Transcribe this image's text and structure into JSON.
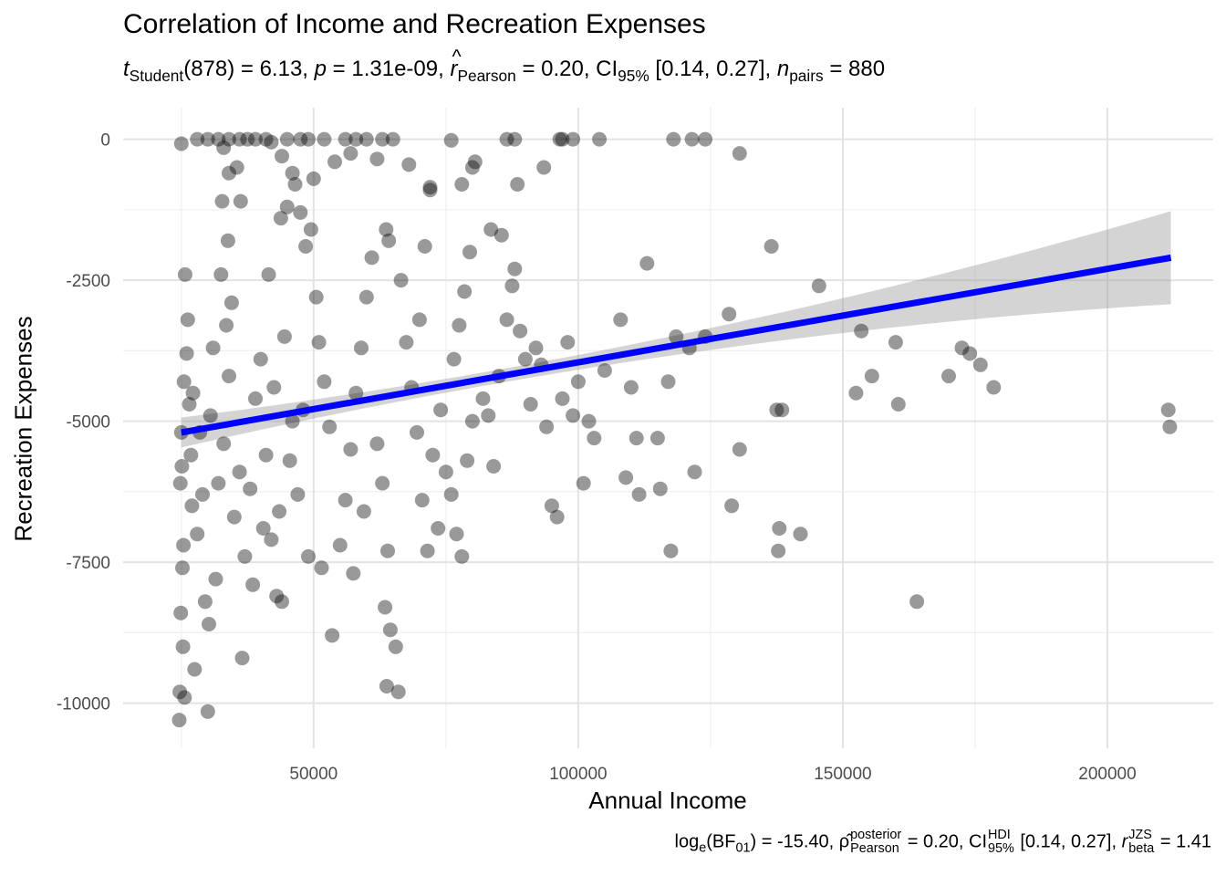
{
  "title": "Correlation of Income and Recreation Expenses",
  "subtitle": {
    "t_sym": "t",
    "t_sub": "Student",
    "t_val": "(878) = 6.13,",
    "p_sym": "p",
    "p_val": "= 1.31e-09,",
    "r_sym": "r",
    "r_sub": "Pearson",
    "r_val": "= 0.20, CI",
    "ci_sub": "95%",
    "ci_val": "[0.14, 0.27],",
    "n_sym": "n",
    "n_sub": "pairs",
    "n_val": "= 880"
  },
  "caption": {
    "log": "log",
    "log_sub": "e",
    "bf_open": "(BF",
    "bf_sub": "01",
    "bf_val": ") = -15.40,",
    "rho_sym": "ρ̂",
    "rho_sup": "posterior",
    "rho_sub": "Pearson",
    "rho_val": "= 0.20, CI",
    "ci_sup": "HDI",
    "ci_sub": "95%",
    "ci_val": "[0.14, 0.27],",
    "rj_sym": "r",
    "rj_sup": "JZS",
    "rj_sub": "beta",
    "rj_val": "= 1.41"
  },
  "chart_data": {
    "type": "scatter",
    "title": "Correlation of Income and Recreation Expenses",
    "xlabel": "Annual Income",
    "ylabel": "Recreation Expenses",
    "xlim": [
      14000,
      220000
    ],
    "ylim": [
      -10800,
      560
    ],
    "xticks": [
      50000,
      100000,
      150000,
      200000
    ],
    "yticks": [
      0,
      -2500,
      -5000,
      -7500,
      -10000
    ],
    "n_points": 880,
    "point_color": "#000000",
    "point_alpha": 0.4,
    "line_color": "#0000ff",
    "band_color": "#999999",
    "fit": {
      "x_start": 25000,
      "x_end": 212000,
      "y_start": -5200,
      "y_end": -2100,
      "ci_lower_end": -2950,
      "ci_upper_end": -1300,
      "ci_halfwidth_center": 120
    },
    "points": [
      [
        25000,
        -5200
      ],
      [
        25500,
        -4300
      ],
      [
        24800,
        -6100
      ],
      [
        25200,
        -7600
      ],
      [
        26000,
        -3800
      ],
      [
        24900,
        -8400
      ],
      [
        25300,
        -9000
      ],
      [
        25100,
        -5800
      ],
      [
        26500,
        -4700
      ],
      [
        27000,
        -6500
      ],
      [
        25700,
        -2400
      ],
      [
        26200,
        -3200
      ],
      [
        25400,
        -7200
      ],
      [
        24700,
        -9800
      ],
      [
        25600,
        -9900
      ],
      [
        27500,
        -9400
      ],
      [
        30000,
        -10150
      ],
      [
        24600,
        -10300
      ],
      [
        26800,
        -5600
      ],
      [
        27200,
        -4500
      ],
      [
        28000,
        -7000
      ],
      [
        28500,
        -5200
      ],
      [
        29000,
        -6300
      ],
      [
        30500,
        -4900
      ],
      [
        31000,
        -3700
      ],
      [
        32000,
        -6100
      ],
      [
        29500,
        -8200
      ],
      [
        31500,
        -7800
      ],
      [
        30200,
        -8600
      ],
      [
        33000,
        -5400
      ],
      [
        34000,
        -4200
      ],
      [
        33500,
        -3300
      ],
      [
        35000,
        -6700
      ],
      [
        36000,
        -5900
      ],
      [
        34500,
        -2900
      ],
      [
        32500,
        -2400
      ],
      [
        33800,
        -1800
      ],
      [
        32700,
        -1100
      ],
      [
        36200,
        -1100
      ],
      [
        35500,
        -500
      ],
      [
        34000,
        -600
      ],
      [
        36500,
        -9200
      ],
      [
        37000,
        -7400
      ],
      [
        38000,
        -6200
      ],
      [
        39000,
        -4600
      ],
      [
        40000,
        -3900
      ],
      [
        41000,
        -5600
      ],
      [
        42000,
        -7100
      ],
      [
        43000,
        -8100
      ],
      [
        44000,
        -8200
      ],
      [
        38500,
        -7900
      ],
      [
        40500,
        -6900
      ],
      [
        42500,
        -4400
      ],
      [
        44500,
        -3500
      ],
      [
        46000,
        -5000
      ],
      [
        47000,
        -6300
      ],
      [
        48000,
        -4800
      ],
      [
        45500,
        -5700
      ],
      [
        43500,
        -6600
      ],
      [
        41500,
        -2400
      ],
      [
        43800,
        -1400
      ],
      [
        45000,
        -1200
      ],
      [
        46500,
        -800
      ],
      [
        47500,
        -1300
      ],
      [
        48500,
        -1900
      ],
      [
        49500,
        -1600
      ],
      [
        50500,
        -2800
      ],
      [
        51000,
        -3600
      ],
      [
        52000,
        -4300
      ],
      [
        53000,
        -5100
      ],
      [
        49000,
        -7400
      ],
      [
        51500,
        -7600
      ],
      [
        53500,
        -8800
      ],
      [
        55000,
        -7200
      ],
      [
        56000,
        -6400
      ],
      [
        57000,
        -5500
      ],
      [
        58000,
        -4500
      ],
      [
        59000,
        -3700
      ],
      [
        60000,
        -2800
      ],
      [
        61000,
        -2100
      ],
      [
        57500,
        -7700
      ],
      [
        59500,
        -6600
      ],
      [
        62000,
        -5400
      ],
      [
        63000,
        -6100
      ],
      [
        64000,
        -7300
      ],
      [
        63500,
        -8300
      ],
      [
        64500,
        -8700
      ],
      [
        63800,
        -9700
      ],
      [
        66000,
        -9800
      ],
      [
        65500,
        -9000
      ],
      [
        64200,
        -1800
      ],
      [
        63700,
        -1600
      ],
      [
        66500,
        -2500
      ],
      [
        67500,
        -3600
      ],
      [
        68500,
        -4400
      ],
      [
        69500,
        -5200
      ],
      [
        70500,
        -6400
      ],
      [
        71500,
        -7300
      ],
      [
        72500,
        -5600
      ],
      [
        73500,
        -6900
      ],
      [
        70000,
        -3200
      ],
      [
        71000,
        -1900
      ],
      [
        72000,
        -900
      ],
      [
        74000,
        -4800
      ],
      [
        75000,
        -5900
      ],
      [
        76000,
        -6300
      ],
      [
        77000,
        -7000
      ],
      [
        78000,
        -7400
      ],
      [
        79000,
        -5700
      ],
      [
        80000,
        -5000
      ],
      [
        76500,
        -3900
      ],
      [
        77500,
        -3300
      ],
      [
        78500,
        -2700
      ],
      [
        79500,
        -2000
      ],
      [
        80500,
        -400
      ],
      [
        78000,
        -800
      ],
      [
        82000,
        -4600
      ],
      [
        83000,
        -4900
      ],
      [
        84000,
        -5800
      ],
      [
        85000,
        -4200
      ],
      [
        83500,
        -1600
      ],
      [
        85500,
        -1700
      ],
      [
        86500,
        -3200
      ],
      [
        87500,
        -2600
      ],
      [
        88000,
        -2300
      ],
      [
        88500,
        -800
      ],
      [
        89000,
        -3400
      ],
      [
        90000,
        -3900
      ],
      [
        91000,
        -4700
      ],
      [
        92000,
        -3700
      ],
      [
        93000,
        -4000
      ],
      [
        94000,
        -5100
      ],
      [
        95000,
        -6500
      ],
      [
        96000,
        -6700
      ],
      [
        97000,
        -4600
      ],
      [
        98000,
        -3600
      ],
      [
        99000,
        -4900
      ],
      [
        100000,
        -4300
      ],
      [
        101000,
        -6100
      ],
      [
        102000,
        -5000
      ],
      [
        103000,
        -5300
      ],
      [
        105000,
        -4100
      ],
      [
        108000,
        -3200
      ],
      [
        109000,
        -6000
      ],
      [
        110000,
        -4400
      ],
      [
        111000,
        -5300
      ],
      [
        111500,
        -6300
      ],
      [
        113000,
        -2200
      ],
      [
        115000,
        -5300
      ],
      [
        115500,
        -6200
      ],
      [
        117000,
        -4300
      ],
      [
        117500,
        -7300
      ],
      [
        118500,
        -3500
      ],
      [
        121000,
        -3700
      ],
      [
        122000,
        -5900
      ],
      [
        124000,
        -3500
      ],
      [
        128500,
        -3100
      ],
      [
        129000,
        -6500
      ],
      [
        130500,
        -5500
      ],
      [
        136500,
        -1900
      ],
      [
        137500,
        -4800
      ],
      [
        137800,
        -7300
      ],
      [
        138000,
        -6900
      ],
      [
        138500,
        -4800
      ],
      [
        142000,
        -7000
      ],
      [
        145500,
        -2600
      ],
      [
        152500,
        -4500
      ],
      [
        153500,
        -3400
      ],
      [
        155500,
        -4200
      ],
      [
        160000,
        -3600
      ],
      [
        160500,
        -4700
      ],
      [
        164000,
        -8200
      ],
      [
        170000,
        -4200
      ],
      [
        172500,
        -3700
      ],
      [
        174000,
        -3800
      ],
      [
        176000,
        -4000
      ],
      [
        178500,
        -4400
      ],
      [
        211500,
        -4800
      ],
      [
        211800,
        -5100
      ],
      [
        130500,
        -250
      ],
      [
        93500,
        -500
      ],
      [
        88000,
        0
      ],
      [
        86500,
        0
      ],
      [
        97000,
        0
      ],
      [
        99000,
        0
      ],
      [
        104000,
        0
      ],
      [
        118000,
        0
      ],
      [
        121500,
        0
      ],
      [
        124000,
        0
      ],
      [
        96500,
        0
      ],
      [
        76000,
        -20
      ],
      [
        65000,
        0
      ],
      [
        63000,
        0
      ],
      [
        60000,
        0
      ],
      [
        58000,
        0
      ],
      [
        56000,
        0
      ],
      [
        52000,
        0
      ],
      [
        49000,
        0
      ],
      [
        47500,
        0
      ],
      [
        45000,
        0
      ],
      [
        41000,
        0
      ],
      [
        39000,
        0
      ],
      [
        37500,
        0
      ],
      [
        36000,
        0
      ],
      [
        34000,
        0
      ],
      [
        32000,
        0
      ],
      [
        30000,
        0
      ],
      [
        28000,
        0
      ],
      [
        25000,
        -80
      ],
      [
        44000,
        -300
      ],
      [
        46000,
        -600
      ],
      [
        50000,
        -700
      ],
      [
        54000,
        -400
      ],
      [
        57000,
        -250
      ],
      [
        62000,
        -350
      ],
      [
        68000,
        -450
      ],
      [
        72000,
        -850
      ],
      [
        80000,
        -500
      ],
      [
        33000,
        -150
      ],
      [
        42000,
        -50
      ]
    ]
  }
}
